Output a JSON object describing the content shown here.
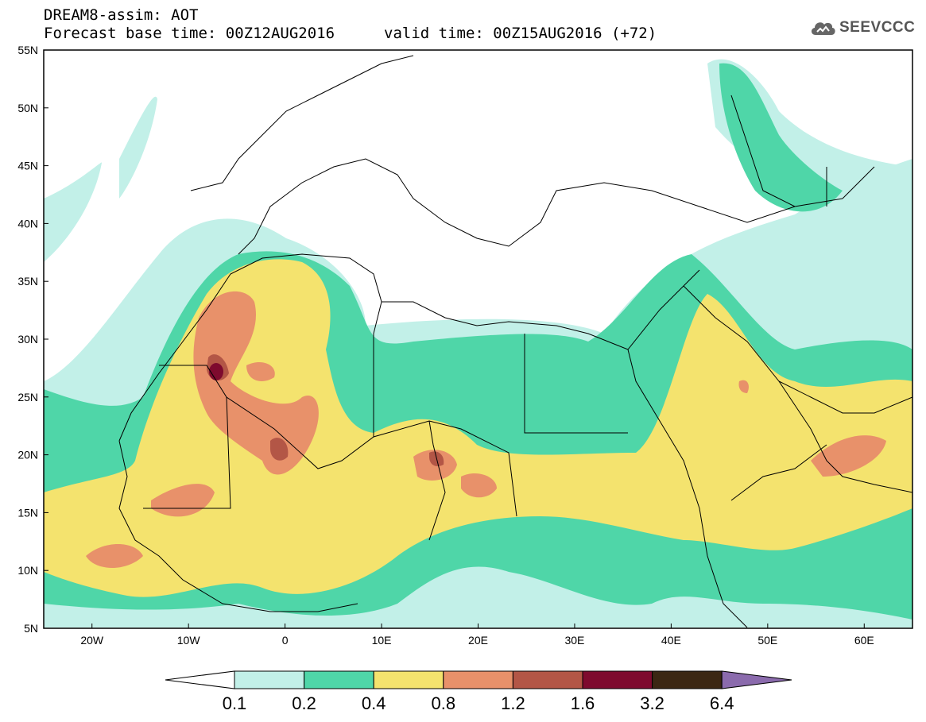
{
  "header": {
    "title": "DREAM8-assim: AOT",
    "base_time": "Forecast base time: 00Z12AUG2016",
    "valid_time": "valid time: 00Z15AUG2016 (+72)"
  },
  "logo": {
    "text": "SEEVCCC",
    "icon": "cloud-icon"
  },
  "map": {
    "lon_range": [
      -25,
      65
    ],
    "lat_range": [
      5,
      55
    ],
    "lat_ticks": [
      "55N",
      "50N",
      "45N",
      "40N",
      "35N",
      "30N",
      "25N",
      "20N",
      "15N",
      "10N",
      "5N"
    ],
    "lon_ticks": [
      "20W",
      "10W",
      "0",
      "10E",
      "20E",
      "30E",
      "40E",
      "50E",
      "60E"
    ]
  },
  "colorbar": {
    "labels": [
      "0.1",
      "0.2",
      "0.4",
      "0.8",
      "1.2",
      "1.6",
      "3.2",
      "6.4"
    ],
    "colors": [
      "#ffffff",
      "#c2f0e8",
      "#4fd6a8",
      "#f4e36e",
      "#e8916a",
      "#b35646",
      "#7e0a2e",
      "#3b2713",
      "#8b6bad"
    ]
  }
}
